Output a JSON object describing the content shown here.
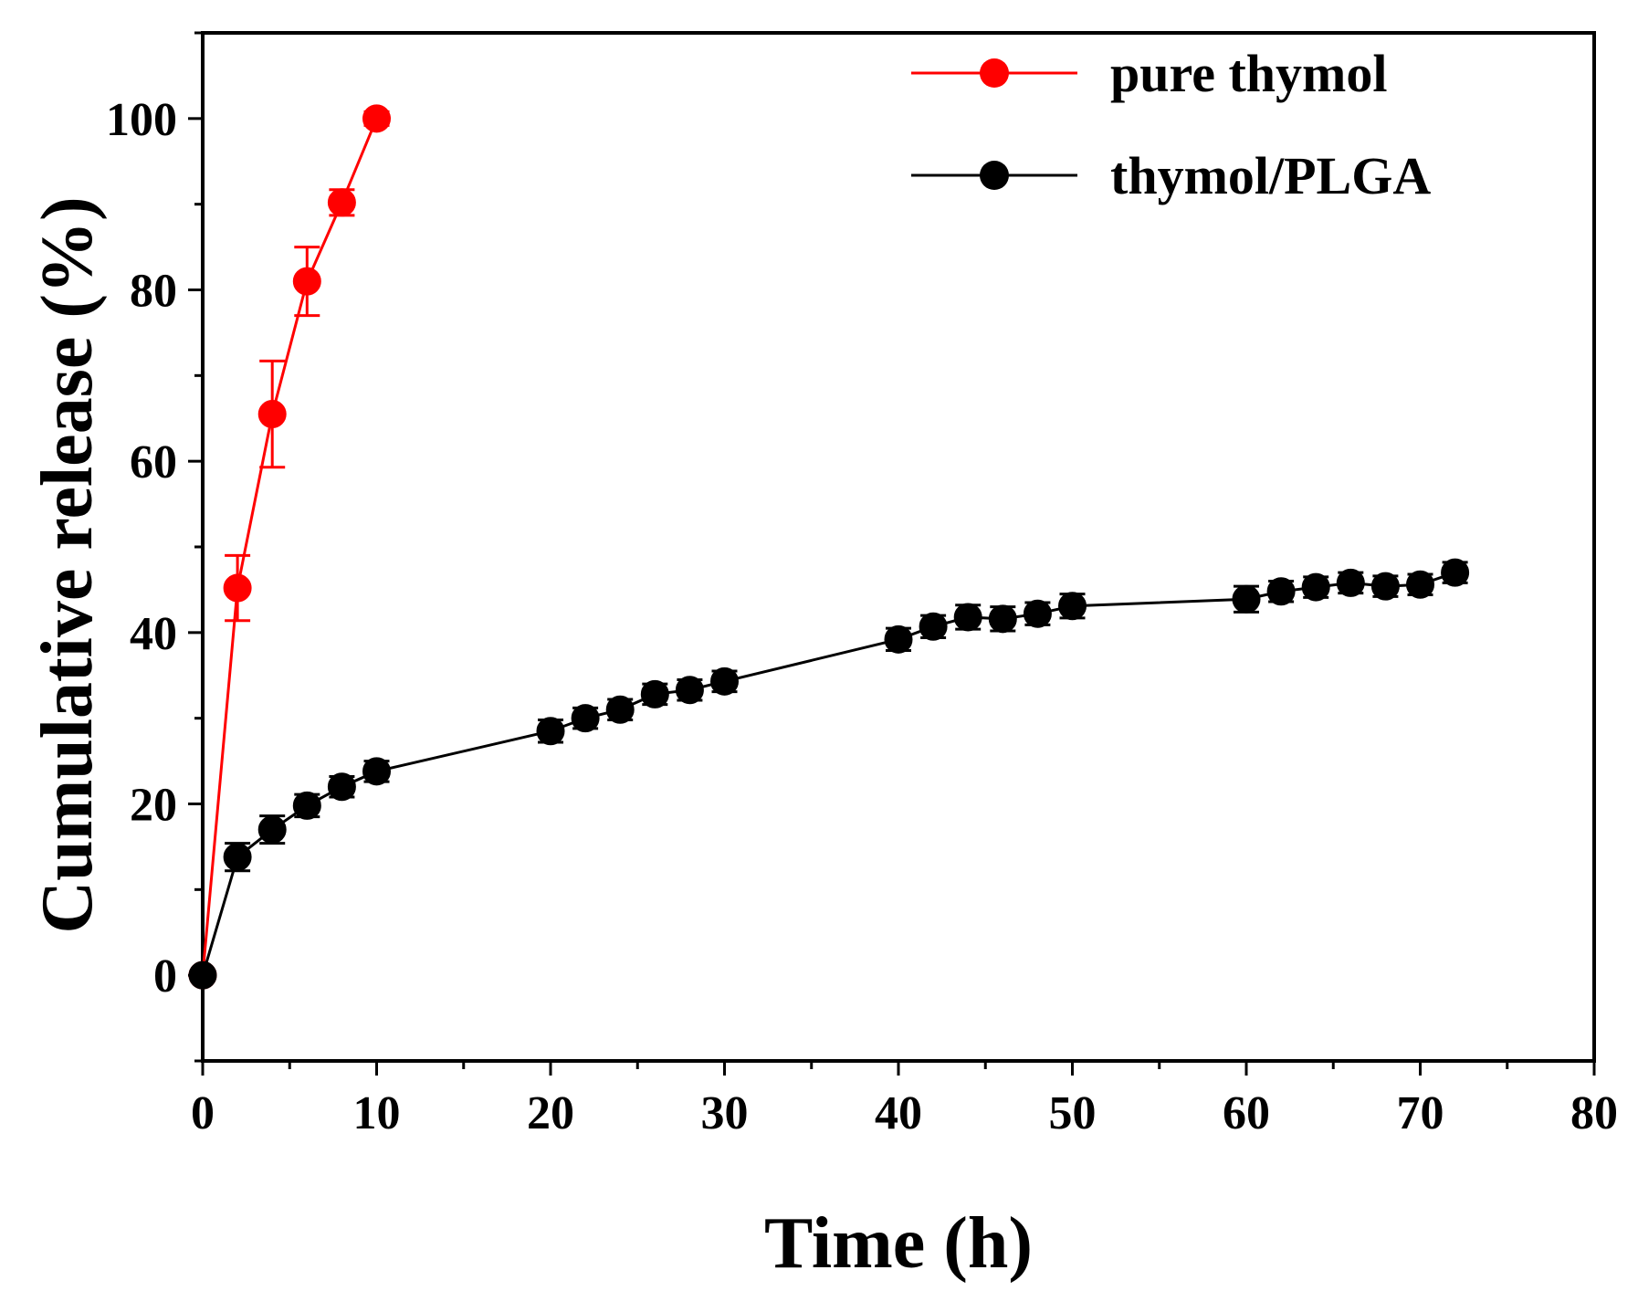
{
  "chart_data": {
    "type": "line",
    "title": "",
    "xlabel": "Time (h)",
    "ylabel": "Cumulative release (%)",
    "xlim": [
      0,
      80
    ],
    "ylim": [
      -10,
      110
    ],
    "xticks": [
      0,
      10,
      20,
      30,
      40,
      50,
      60,
      70,
      80
    ],
    "yticks": [
      0,
      20,
      40,
      60,
      80,
      100
    ],
    "grid": false,
    "legend_position": "top-right",
    "series": [
      {
        "name": "pure thymol",
        "color": "#ff0000",
        "marker": "circle",
        "x": [
          0,
          2,
          4,
          6,
          8,
          10
        ],
        "y": [
          0,
          45.2,
          65.5,
          81.0,
          90.2,
          100.0
        ],
        "error": [
          0,
          3.8,
          6.2,
          4.0,
          1.5,
          0.8
        ]
      },
      {
        "name": "thymol/PLGA",
        "color": "#000000",
        "marker": "circle",
        "x": [
          0,
          2,
          4,
          6,
          8,
          10,
          20,
          22,
          24,
          26,
          28,
          30,
          40,
          42,
          44,
          46,
          48,
          50,
          60,
          62,
          64,
          66,
          68,
          70,
          72
        ],
        "y": [
          0,
          13.8,
          17.0,
          19.8,
          22.0,
          23.8,
          28.5,
          30.0,
          31.0,
          32.8,
          33.3,
          34.3,
          39.2,
          40.7,
          41.8,
          41.6,
          42.2,
          43.1,
          43.9,
          44.8,
          45.3,
          45.8,
          45.4,
          45.6,
          47.0
        ],
        "error": [
          0,
          1.6,
          1.6,
          1.3,
          1.2,
          1.2,
          1.3,
          1.2,
          1.2,
          1.2,
          1.2,
          1.2,
          1.3,
          1.3,
          1.4,
          1.4,
          1.3,
          1.4,
          1.5,
          1.2,
          1.2,
          1.2,
          1.2,
          1.2,
          1.2
        ]
      }
    ]
  }
}
